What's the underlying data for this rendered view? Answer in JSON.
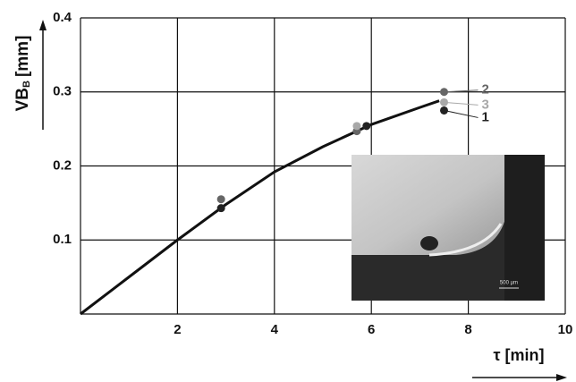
{
  "chart_data": {
    "type": "line",
    "x_label": "τ [min]",
    "y_label": {
      "main": "VB",
      "sub": "B",
      "unit": "[mm]"
    },
    "xlim": [
      0,
      10
    ],
    "xticks": [
      2,
      4,
      6,
      8,
      10
    ],
    "ylim": [
      0,
      0.4
    ],
    "yticks": [
      0.1,
      0.2,
      0.3,
      0.4
    ],
    "grid": true,
    "curve": {
      "color": "#111111",
      "x": [
        0,
        1,
        2,
        3,
        4,
        5,
        6,
        7,
        7.4
      ],
      "values": [
        0,
        0.05,
        0.1,
        0.148,
        0.192,
        0.226,
        0.256,
        0.279,
        0.288
      ]
    },
    "series": [
      {
        "name": "1",
        "color": "#222222",
        "x": [
          2.9,
          5.9,
          7.5
        ],
        "values": [
          0.143,
          0.254,
          0.275
        ]
      },
      {
        "name": "2",
        "color": "#666666",
        "x": [
          2.9,
          5.7,
          7.5
        ],
        "values": [
          0.155,
          0.247,
          0.3
        ]
      },
      {
        "name": "3",
        "color": "#a8a8a8",
        "x": [
          5.7,
          7.5
        ],
        "values": [
          0.254,
          0.286
        ]
      }
    ],
    "inset_scale_label": "500 µm"
  }
}
